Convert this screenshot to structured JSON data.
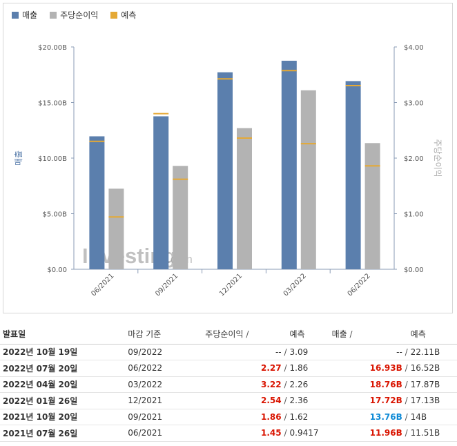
{
  "colors": {
    "revenue": "#5b7fad",
    "eps": "#b3b3b3",
    "forecast": "#e5a935",
    "up": "#d91400",
    "down": "#0e8ad6"
  },
  "legend": [
    {
      "label": "매출",
      "color": "#5b7fad"
    },
    {
      "label": "주당순이익",
      "color": "#b3b3b3"
    },
    {
      "label": "예측",
      "color": "#e5a935"
    }
  ],
  "watermark": {
    "brand": "Investing",
    "suffix": ".com"
  },
  "chart_data": {
    "type": "bar",
    "categories": [
      "06/2021",
      "09/2021",
      "12/2021",
      "03/2022",
      "06/2022"
    ],
    "series": [
      {
        "name": "매출",
        "axis": "left",
        "values": [
          11.96,
          13.76,
          17.72,
          18.76,
          16.93
        ],
        "unit": "B"
      },
      {
        "name": "주당순이익",
        "axis": "right",
        "values": [
          1.45,
          1.86,
          2.54,
          3.22,
          2.27
        ]
      }
    ],
    "forecast": {
      "name": "예측",
      "revenue": [
        11.51,
        14,
        17.13,
        17.87,
        16.52
      ],
      "eps": [
        0.9417,
        1.62,
        2.36,
        2.26,
        1.86
      ]
    },
    "ylabel_left": "매출",
    "ylabel_right": "주당순이익",
    "ylim_left": [
      0,
      20
    ],
    "ylim_right": [
      0,
      4
    ],
    "yticks_left": [
      "$0.00",
      "$5.00B",
      "$10.00B",
      "$15.00B",
      "$20.00B"
    ],
    "yticks_right": [
      "$0.00",
      "$1.00",
      "$2.00",
      "$3.00",
      "$4.00"
    ],
    "grid": false,
    "legend_position": "top-left"
  },
  "table": {
    "headers": {
      "date": "발표일",
      "period": "마감 기준",
      "eps": "주당순이익",
      "eps_forecast": "예측",
      "revenue": "매출",
      "revenue_forecast": "예측",
      "slash": "/"
    },
    "rows": [
      {
        "date": "2022년 10월 19일",
        "period": "09/2022",
        "eps": "--",
        "eps_class": "flat",
        "eps_forecast": "3.09",
        "revenue": "--",
        "revenue_class": "flat",
        "revenue_forecast": "22.11B"
      },
      {
        "date": "2022년 07월 20일",
        "period": "06/2022",
        "eps": "2.27",
        "eps_class": "up",
        "eps_forecast": "1.86",
        "revenue": "16.93B",
        "revenue_class": "up",
        "revenue_forecast": "16.52B"
      },
      {
        "date": "2022년 04월 20일",
        "period": "03/2022",
        "eps": "3.22",
        "eps_class": "up",
        "eps_forecast": "2.26",
        "revenue": "18.76B",
        "revenue_class": "up",
        "revenue_forecast": "17.87B"
      },
      {
        "date": "2022년 01월 26일",
        "period": "12/2021",
        "eps": "2.54",
        "eps_class": "up",
        "eps_forecast": "2.36",
        "revenue": "17.72B",
        "revenue_class": "up",
        "revenue_forecast": "17.13B"
      },
      {
        "date": "2021년 10월 20일",
        "period": "09/2021",
        "eps": "1.86",
        "eps_class": "up",
        "eps_forecast": "1.62",
        "revenue": "13.76B",
        "revenue_class": "down",
        "revenue_forecast": "14B"
      },
      {
        "date": "2021년 07월 26일",
        "period": "06/2021",
        "eps": "1.45",
        "eps_class": "up",
        "eps_forecast": "0.9417",
        "revenue": "11.96B",
        "revenue_class": "up",
        "revenue_forecast": "11.51B"
      }
    ]
  }
}
